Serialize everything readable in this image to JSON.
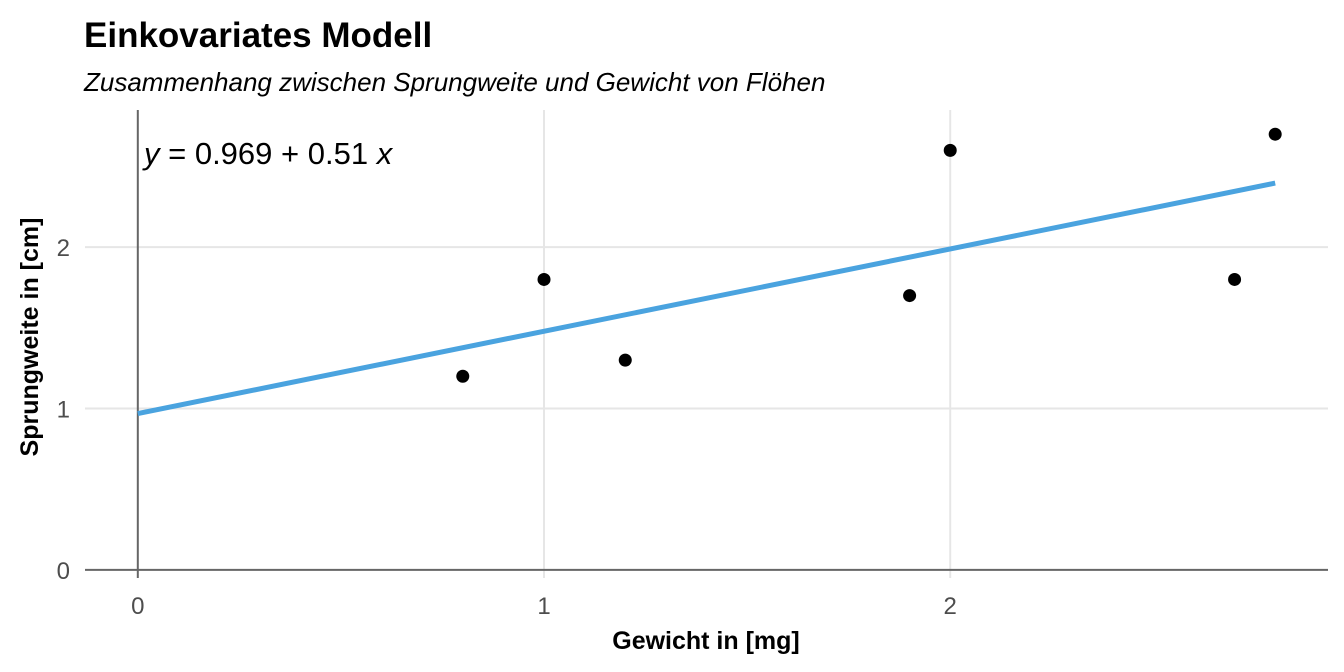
{
  "chart_data": {
    "type": "scatter",
    "title": "Einkovariates Modell",
    "subtitle": "Zusammenhang zwischen Sprungweite und Gewicht von Flöhen",
    "xlabel": "Gewicht in [mg]",
    "ylabel": "Sprungweite in [cm]",
    "xlim": [
      -0.13,
      2.93
    ],
    "ylim": [
      -0.05,
      2.85
    ],
    "xticks": [
      0,
      1,
      2
    ],
    "yticks": [
      0,
      1,
      2
    ],
    "grid": true,
    "points": [
      {
        "x": 0.8,
        "y": 1.2
      },
      {
        "x": 1.0,
        "y": 1.8
      },
      {
        "x": 1.2,
        "y": 1.3
      },
      {
        "x": 1.9,
        "y": 1.7
      },
      {
        "x": 2.0,
        "y": 2.6
      },
      {
        "x": 2.7,
        "y": 1.8
      },
      {
        "x": 2.8,
        "y": 2.7
      }
    ],
    "regression": {
      "intercept": 0.969,
      "slope": 0.51,
      "x_range": [
        0,
        2.8
      ],
      "color": "#4aa3df"
    },
    "annotation": {
      "parts": [
        "y",
        " = 0.969 + 0.51 ",
        "x"
      ]
    },
    "point_color": "#000000"
  }
}
